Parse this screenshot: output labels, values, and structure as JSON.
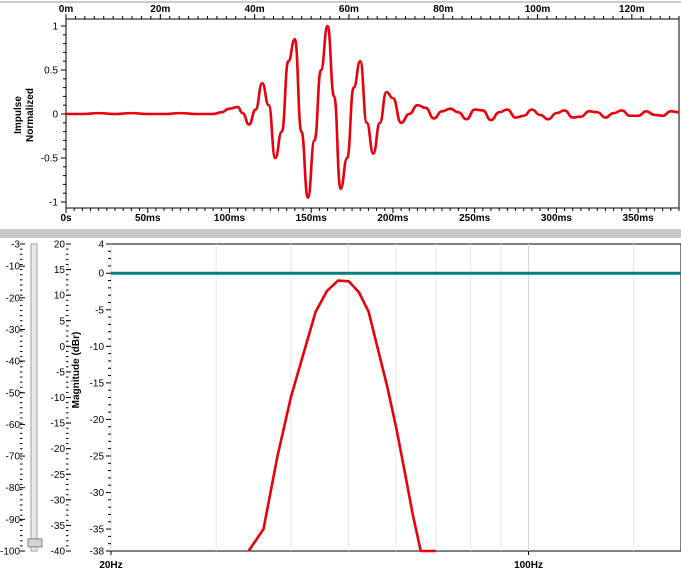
{
  "chart_data": [
    {
      "type": "line",
      "ylabel_lines": [
        "Impulse",
        "Normalized"
      ],
      "top_axis": {
        "ticks": [
          "0m",
          "20m",
          "40m",
          "60m",
          "80m",
          "100m",
          "120m"
        ],
        "values": [
          0,
          20,
          40,
          60,
          80,
          100,
          120
        ],
        "range": [
          0,
          130
        ]
      },
      "bottom_axis": {
        "ticks": [
          "0s",
          "50ms",
          "100ms",
          "150ms",
          "200ms",
          "250ms",
          "300ms",
          "350ms"
        ],
        "values": [
          0,
          50,
          100,
          150,
          200,
          250,
          300,
          350
        ],
        "range_ms": [
          0,
          375
        ]
      },
      "y_ticks": [
        "1",
        "0.5",
        "0",
        "-0.5",
        "-1"
      ],
      "y_tick_values": [
        1,
        0.5,
        0,
        -0.5,
        -1
      ],
      "ylim": [
        -1,
        1
      ],
      "series": [
        {
          "color": "#e8000b",
          "x_ms": [
            0,
            10,
            20,
            30,
            40,
            50,
            60,
            70,
            80,
            90,
            95,
            100,
            105,
            108,
            112,
            116,
            120,
            124,
            128,
            132,
            136,
            140,
            144,
            148,
            152,
            156,
            160,
            164,
            168,
            172,
            176,
            180,
            184,
            188,
            192,
            196,
            200,
            205,
            210,
            215,
            220,
            225,
            230,
            235,
            240,
            245,
            250,
            255,
            260,
            265,
            270,
            275,
            280,
            285,
            290,
            295,
            300,
            305,
            310,
            315,
            320,
            325,
            330,
            335,
            340,
            345,
            350,
            355,
            360,
            365,
            370,
            375
          ],
          "y": [
            0,
            0,
            0.01,
            0,
            0.01,
            0,
            0,
            0.01,
            0,
            0,
            0.02,
            0.06,
            0.08,
            0.01,
            -0.12,
            0.05,
            0.35,
            0.1,
            -0.5,
            -0.2,
            0.6,
            0.85,
            -0.2,
            -0.95,
            -0.3,
            0.5,
            1.0,
            0.2,
            -0.85,
            -0.5,
            0.3,
            0.6,
            -0.1,
            -0.45,
            -0.1,
            0.25,
            0.18,
            -0.1,
            0.0,
            0.1,
            0.07,
            -0.05,
            0.03,
            0.06,
            0.02,
            -0.06,
            0.05,
            0.04,
            -0.07,
            0.02,
            0.05,
            -0.04,
            -0.02,
            0.05,
            -0.01,
            -0.06,
            0.01,
            0.04,
            -0.04,
            -0.03,
            0.03,
            0.02,
            -0.04,
            0.01,
            0.04,
            -0.02,
            -0.02,
            0.03,
            -0.01,
            -0.02,
            0.03,
            0.02
          ]
        }
      ]
    },
    {
      "type": "line",
      "ylabel": "Magnitude (dBr)",
      "x_ticks": [
        "20Hz",
        "100Hz"
      ],
      "x_tick_values": [
        20,
        100
      ],
      "xlim": [
        20,
        180
      ],
      "xscale": "log",
      "y_ticks": [
        "4",
        "0",
        "-5",
        "-10",
        "-15",
        "-20",
        "-25",
        "-30",
        "-35",
        "-38"
      ],
      "y_tick_values": [
        4,
        0,
        -5,
        -10,
        -15,
        -20,
        -25,
        -30,
        -35,
        -38
      ],
      "ylim": [
        -38,
        4
      ],
      "left_scale_a": {
        "ticks": [
          "-3",
          "-10",
          "-20",
          "-30",
          "-40",
          "-50",
          "-60",
          "-70",
          "-80",
          "-90",
          "-100"
        ],
        "values": [
          -3,
          -10,
          -20,
          -30,
          -40,
          -50,
          -60,
          -70,
          -80,
          -90,
          -100
        ],
        "range": [
          -100,
          -3
        ]
      },
      "left_scale_b": {
        "ticks": [
          "20",
          "15",
          "10",
          "5",
          "0",
          "-5",
          "-10",
          "-15",
          "-20",
          "-25",
          "-30",
          "-35",
          "-40"
        ],
        "values": [
          20,
          15,
          10,
          5,
          0,
          -5,
          -10,
          -15,
          -20,
          -25,
          -30,
          -35,
          -40
        ],
        "range": [
          -40,
          20
        ]
      },
      "series": [
        {
          "color": "#008080",
          "x": [
            20,
            180
          ],
          "y": [
            0,
            0
          ]
        },
        {
          "color": "#e8000b",
          "x": [
            34,
            36,
            38,
            40,
            42,
            44,
            46,
            48,
            50,
            52,
            54,
            56,
            58,
            60,
            62,
            64,
            66,
            68,
            70
          ],
          "y": [
            -38,
            -35,
            -25,
            -17,
            -11,
            -5.3,
            -2.4,
            -1.0,
            -1.1,
            -2.6,
            -5.3,
            -10.5,
            -15.5,
            -21,
            -27,
            -33,
            -38,
            -38,
            -38
          ]
        }
      ]
    }
  ],
  "slider": {
    "level_fraction": 0.02
  }
}
